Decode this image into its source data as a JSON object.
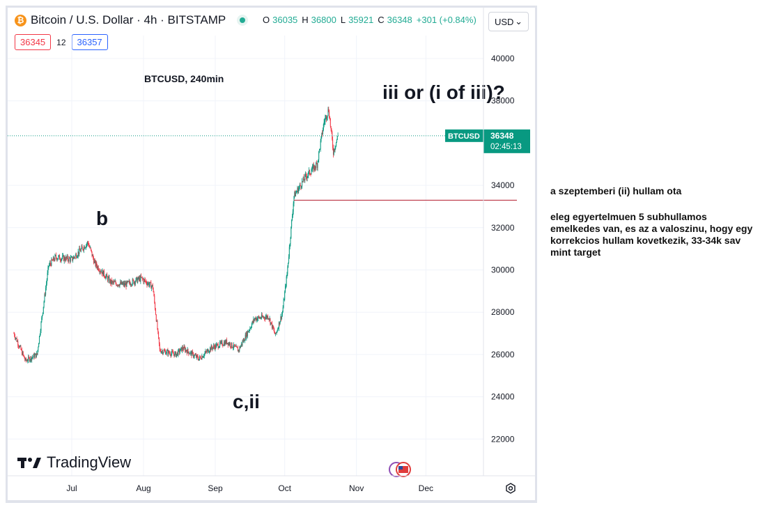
{
  "header": {
    "coin_glyph": "₿",
    "title": "Bitcoin / U.S. Dollar · 4h · BITSTAMP",
    "ohlc": [
      {
        "key": "O",
        "value": "36035"
      },
      {
        "key": "H",
        "value": "36800"
      },
      {
        "key": "L",
        "value": "35921"
      },
      {
        "key": "C",
        "value": "36348"
      }
    ],
    "change": "+301 (+0.84%)",
    "currency": "USD",
    "currency_caret": "⌄"
  },
  "trade": {
    "bid": "36345",
    "spread": "12",
    "ask": "36357"
  },
  "chart_data": {
    "type": "candlestick",
    "title": "BTCUSD, 240min",
    "x_ticks": [
      "Jul",
      "Aug",
      "Sep",
      "Oct",
      "Nov",
      "Dec"
    ],
    "y_ticks": [
      "40000",
      "38000",
      "34000",
      "32000",
      "30000",
      "28000",
      "26000",
      "24000",
      "22000"
    ],
    "ylim": [
      20500,
      41000
    ],
    "price_trend": [
      {
        "day": 0,
        "close": 27000
      },
      {
        "day": 5,
        "close": 25700
      },
      {
        "day": 10,
        "close": 26000
      },
      {
        "day": 15,
        "close": 30200
      },
      {
        "day": 18,
        "close": 30600
      },
      {
        "day": 25,
        "close": 30500
      },
      {
        "day": 32,
        "close": 31300
      },
      {
        "day": 35,
        "close": 30300
      },
      {
        "day": 42,
        "close": 29400
      },
      {
        "day": 48,
        "close": 29300
      },
      {
        "day": 55,
        "close": 29600
      },
      {
        "day": 60,
        "close": 29200
      },
      {
        "day": 63,
        "close": 26200
      },
      {
        "day": 70,
        "close": 26000
      },
      {
        "day": 73,
        "close": 26300
      },
      {
        "day": 80,
        "close": 25800
      },
      {
        "day": 85,
        "close": 26300
      },
      {
        "day": 92,
        "close": 26600
      },
      {
        "day": 97,
        "close": 26200
      },
      {
        "day": 104,
        "close": 27700
      },
      {
        "day": 110,
        "close": 27800
      },
      {
        "day": 113,
        "close": 26900
      },
      {
        "day": 116,
        "close": 28000
      },
      {
        "day": 118,
        "close": 29800
      },
      {
        "day": 121,
        "close": 33500
      },
      {
        "day": 126,
        "close": 34400
      },
      {
        "day": 131,
        "close": 35000
      },
      {
        "day": 134,
        "close": 37000
      },
      {
        "day": 136,
        "close": 37600
      },
      {
        "day": 138,
        "close": 35600
      },
      {
        "day": 140,
        "close": 36348
      }
    ],
    "horizontal_line": {
      "value": 33300,
      "color": "#b2182b"
    },
    "last_price": {
      "symbol": "BTCUSD",
      "price": "36348",
      "countdown": "02:45:13",
      "color": "#089981"
    },
    "annotations": [
      {
        "text": "b",
        "near": "July high"
      },
      {
        "text": "c,ii",
        "near": "September low"
      },
      {
        "text": "iii or (i of iii)?",
        "near": "November high"
      }
    ],
    "up_color": "#089981",
    "down_color": "#f23645"
  },
  "watermark": "TradingView",
  "side_note": {
    "line1": "a szeptemberi (ii) hullam ota",
    "line2": "eleg egyertelmuen 5 subhullamos emelkedes van, es az a valoszinu, hogy egy korrekcios hullam kovetkezik, 33-34k sav mint target"
  },
  "icons": [
    "bitcoin-icon",
    "market-status-icon",
    "flag-icon",
    "settings-icon",
    "tradingview-logo-icon"
  ]
}
